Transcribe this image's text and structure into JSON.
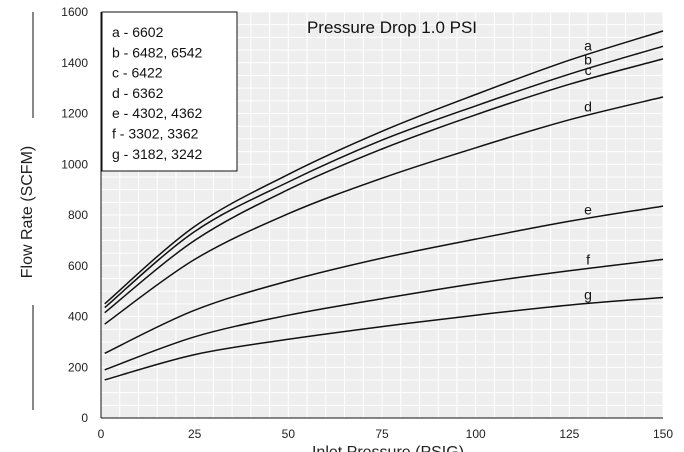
{
  "chart_data": {
    "type": "line",
    "title": "Pressure Drop 1.0 PSI",
    "xlabel": "Inlet Pressure (PSIG)",
    "ylabel": "Flow Rate (SCFM)",
    "xlim": [
      0,
      150
    ],
    "ylim": [
      0,
      1600
    ],
    "x_ticks": [
      0,
      25,
      50,
      75,
      100,
      125,
      150
    ],
    "y_ticks": [
      0,
      200,
      400,
      600,
      800,
      1000,
      1200,
      1400,
      1600
    ],
    "grid": true,
    "legend_position": "top-left",
    "x": [
      1,
      25,
      50,
      75,
      100,
      125,
      150
    ],
    "series": [
      {
        "name": "a",
        "legend": "a - 6602",
        "values": [
          450,
          755,
          960,
          1130,
          1275,
          1410,
          1525
        ]
      },
      {
        "name": "b",
        "legend": "b - 6482, 6542",
        "values": [
          435,
          735,
          930,
          1095,
          1230,
          1355,
          1465
        ]
      },
      {
        "name": "c",
        "legend": "c - 6422",
        "values": [
          415,
          700,
          900,
          1060,
          1195,
          1315,
          1415
        ]
      },
      {
        "name": "d",
        "legend": "d - 6362",
        "values": [
          370,
          625,
          805,
          945,
          1065,
          1175,
          1265
        ]
      },
      {
        "name": "e",
        "legend": "e - 4302, 4362",
        "values": [
          255,
          425,
          540,
          630,
          705,
          775,
          835
        ]
      },
      {
        "name": "f",
        "legend": "f - 3302, 3362",
        "values": [
          190,
          320,
          405,
          470,
          530,
          580,
          625
        ]
      },
      {
        "name": "g",
        "legend": "g - 3182, 3242",
        "values": [
          150,
          250,
          310,
          360,
          405,
          445,
          475
        ]
      }
    ]
  }
}
